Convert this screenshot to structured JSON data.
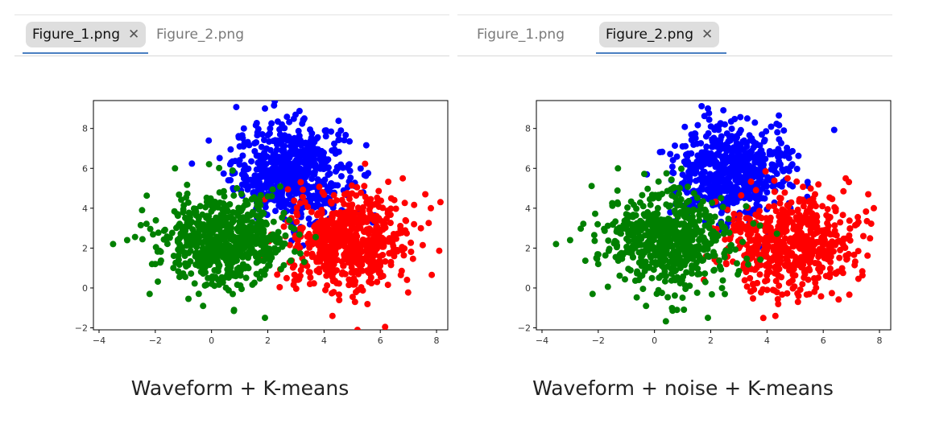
{
  "panels": [
    {
      "tabs": [
        {
          "label": "Figure_1.png",
          "active": true,
          "close_icon": "close-icon"
        },
        {
          "label": "Figure_2.png",
          "active": false
        }
      ],
      "caption": "Waveform + K-means"
    },
    {
      "tabs": [
        {
          "label": "Figure_1.png",
          "active": false
        },
        {
          "label": "Figure_2.png",
          "active": true,
          "close_icon": "close-icon"
        }
      ],
      "caption": "Waveform + noise + K-means"
    }
  ],
  "colors": {
    "tab_underline": "#4a7fc1",
    "active_tab_bg": "#dedede"
  },
  "chart_data": [
    {
      "type": "scatter",
      "title": "",
      "xlabel": "",
      "ylabel": "",
      "xlim": [
        -4.2,
        8.4
      ],
      "ylim": [
        -2.1,
        9.4
      ],
      "xticks": [
        -4,
        -2,
        0,
        2,
        4,
        6,
        8
      ],
      "yticks": [
        -2,
        0,
        2,
        4,
        6,
        8
      ],
      "grid": false,
      "legend": "none",
      "series": [
        {
          "color": "#0000ff",
          "cluster_center": [
            2.8,
            5.8
          ],
          "spread": [
            1.0,
            1.2
          ],
          "points": [
            [
              1.9,
              9.0
            ],
            [
              3.3,
              8.5
            ],
            [
              2.5,
              8.2
            ],
            [
              4.6,
              7.9
            ],
            [
              1.0,
              7.1
            ],
            [
              3.8,
              6.9
            ],
            [
              2.2,
              6.3
            ],
            [
              3.0,
              5.6
            ],
            [
              4.2,
              5.1
            ],
            [
              1.5,
              4.8
            ],
            [
              2.7,
              7.4
            ],
            [
              3.6,
              4.5
            ],
            [
              0.6,
              5.4
            ],
            [
              4.9,
              6.2
            ]
          ]
        },
        {
          "color": "#ff0000",
          "cluster_center": [
            4.8,
            2.3
          ],
          "spread": [
            1.1,
            1.2
          ],
          "points": [
            [
              7.6,
              4.7
            ],
            [
              7.8,
              4.0
            ],
            [
              6.8,
              5.5
            ],
            [
              7.2,
              3.2
            ],
            [
              5.5,
              1.5
            ],
            [
              4.3,
              -1.4
            ],
            [
              3.5,
              0.2
            ],
            [
              6.1,
              0.6
            ],
            [
              4.9,
              3.3
            ],
            [
              3.0,
              2.0
            ],
            [
              5.8,
              2.8
            ],
            [
              4.0,
              1.1
            ],
            [
              6.6,
              1.9
            ],
            [
              5.1,
              -0.7
            ]
          ]
        },
        {
          "color": "#008000",
          "cluster_center": [
            0.5,
            2.4
          ],
          "spread": [
            1.1,
            1.1
          ],
          "points": [
            [
              -3.5,
              2.2
            ],
            [
              -3.0,
              2.4
            ],
            [
              -2.2,
              -0.3
            ],
            [
              -1.3,
              6.0
            ],
            [
              1.9,
              -1.5
            ],
            [
              0.8,
              -1.1
            ],
            [
              -0.3,
              -0.9
            ],
            [
              0.2,
              3.1
            ],
            [
              -1.0,
              1.8
            ],
            [
              1.2,
              2.7
            ],
            [
              -0.4,
              4.1
            ],
            [
              1.6,
              0.7
            ],
            [
              -2.0,
              1.2
            ],
            [
              0.9,
              5.0
            ]
          ]
        }
      ]
    },
    {
      "type": "scatter",
      "title": "",
      "xlabel": "",
      "ylabel": "",
      "xlim": [
        -4.2,
        8.4
      ],
      "ylim": [
        -2.1,
        9.4
      ],
      "xticks": [
        -4,
        -2,
        0,
        2,
        4,
        6,
        8
      ],
      "yticks": [
        -2,
        0,
        2,
        4,
        6,
        8
      ],
      "grid": false,
      "legend": "none",
      "series": [
        {
          "color": "#0000ff",
          "cluster_center": [
            2.8,
            5.8
          ],
          "spread": [
            1.0,
            1.2
          ],
          "points": [
            [
              1.9,
              9.0
            ],
            [
              3.3,
              8.5
            ],
            [
              2.5,
              8.2
            ],
            [
              4.6,
              7.9
            ],
            [
              1.0,
              7.1
            ],
            [
              3.8,
              6.9
            ],
            [
              2.2,
              6.3
            ],
            [
              3.0,
              5.6
            ],
            [
              4.2,
              5.1
            ],
            [
              1.5,
              4.8
            ],
            [
              2.7,
              7.4
            ],
            [
              3.6,
              4.5
            ],
            [
              0.6,
              5.4
            ],
            [
              4.9,
              6.2
            ]
          ]
        },
        {
          "color": "#ff0000",
          "cluster_center": [
            4.8,
            2.3
          ],
          "spread": [
            1.1,
            1.2
          ],
          "points": [
            [
              7.6,
              4.7
            ],
            [
              7.8,
              4.0
            ],
            [
              6.8,
              5.5
            ],
            [
              7.2,
              3.2
            ],
            [
              5.5,
              1.5
            ],
            [
              4.3,
              -1.4
            ],
            [
              3.5,
              0.2
            ],
            [
              6.1,
              0.6
            ],
            [
              4.9,
              3.3
            ],
            [
              3.0,
              2.0
            ],
            [
              5.8,
              2.8
            ],
            [
              4.0,
              1.1
            ],
            [
              6.6,
              1.9
            ],
            [
              5.1,
              -0.7
            ]
          ]
        },
        {
          "color": "#008000",
          "cluster_center": [
            0.5,
            2.4
          ],
          "spread": [
            1.1,
            1.1
          ],
          "points": [
            [
              -3.5,
              2.2
            ],
            [
              -3.0,
              2.4
            ],
            [
              -2.2,
              -0.3
            ],
            [
              -1.3,
              6.0
            ],
            [
              1.9,
              -1.5
            ],
            [
              0.8,
              -1.1
            ],
            [
              -0.3,
              -0.9
            ],
            [
              0.2,
              3.1
            ],
            [
              -1.0,
              1.8
            ],
            [
              1.2,
              2.7
            ],
            [
              -0.4,
              4.1
            ],
            [
              1.6,
              0.7
            ],
            [
              -2.0,
              1.2
            ],
            [
              0.9,
              5.0
            ]
          ]
        }
      ]
    }
  ]
}
